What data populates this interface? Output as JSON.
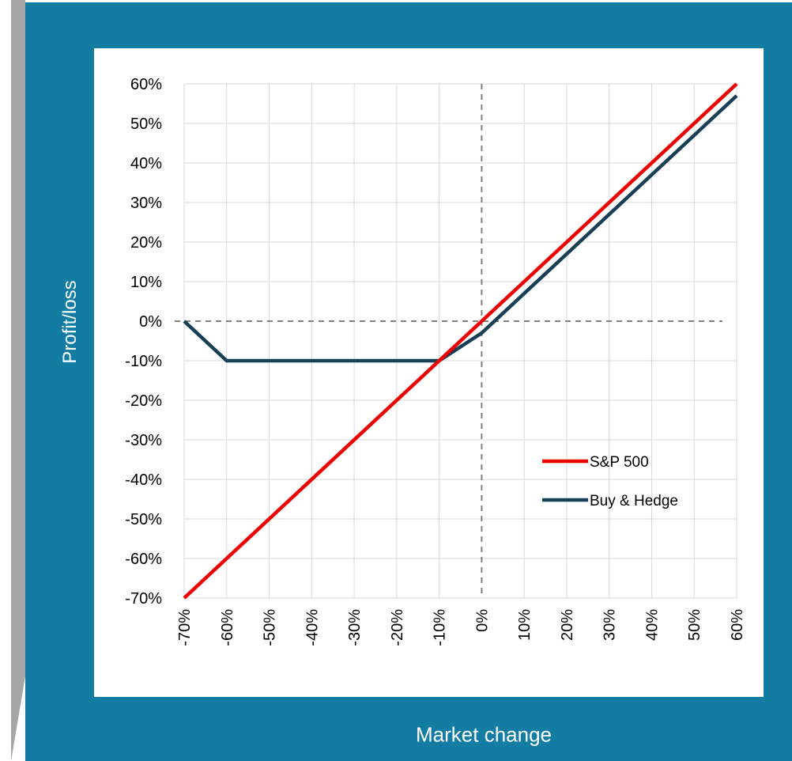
{
  "chart_data": {
    "type": "line",
    "x_axis_label": "Market change",
    "y_axis_label": "Profit/loss",
    "x_ticks": [
      "-70%",
      "-60%",
      "-50%",
      "-40%",
      "-30%",
      "-20%",
      "-10%",
      "0%",
      "10%",
      "20%",
      "30%",
      "40%",
      "50%",
      "60%"
    ],
    "y_ticks": [
      "60%",
      "50%",
      "40%",
      "30%",
      "20%",
      "10%",
      "0%",
      "-10%",
      "-20%",
      "-30%",
      "-40%",
      "-50%",
      "-60%",
      "-70%"
    ],
    "xlim": [
      -70,
      60
    ],
    "ylim": [
      -70,
      60
    ],
    "grid": true,
    "zero_lines": "dashed",
    "legend_position": "lower-right",
    "series": [
      {
        "name": "S&P 500",
        "color": "#ee0000",
        "points": [
          [
            -70,
            -70
          ],
          [
            60,
            60
          ]
        ]
      },
      {
        "name": "Buy & Hedge",
        "color": "#173f55",
        "points": [
          [
            -70,
            0
          ],
          [
            -60,
            -10
          ],
          [
            -10,
            -10
          ],
          [
            0,
            -3
          ],
          [
            60,
            57
          ]
        ]
      }
    ]
  },
  "colors": {
    "frame": "#127ca2",
    "grid": "#d9d9d9",
    "zero_line": "#808080"
  }
}
